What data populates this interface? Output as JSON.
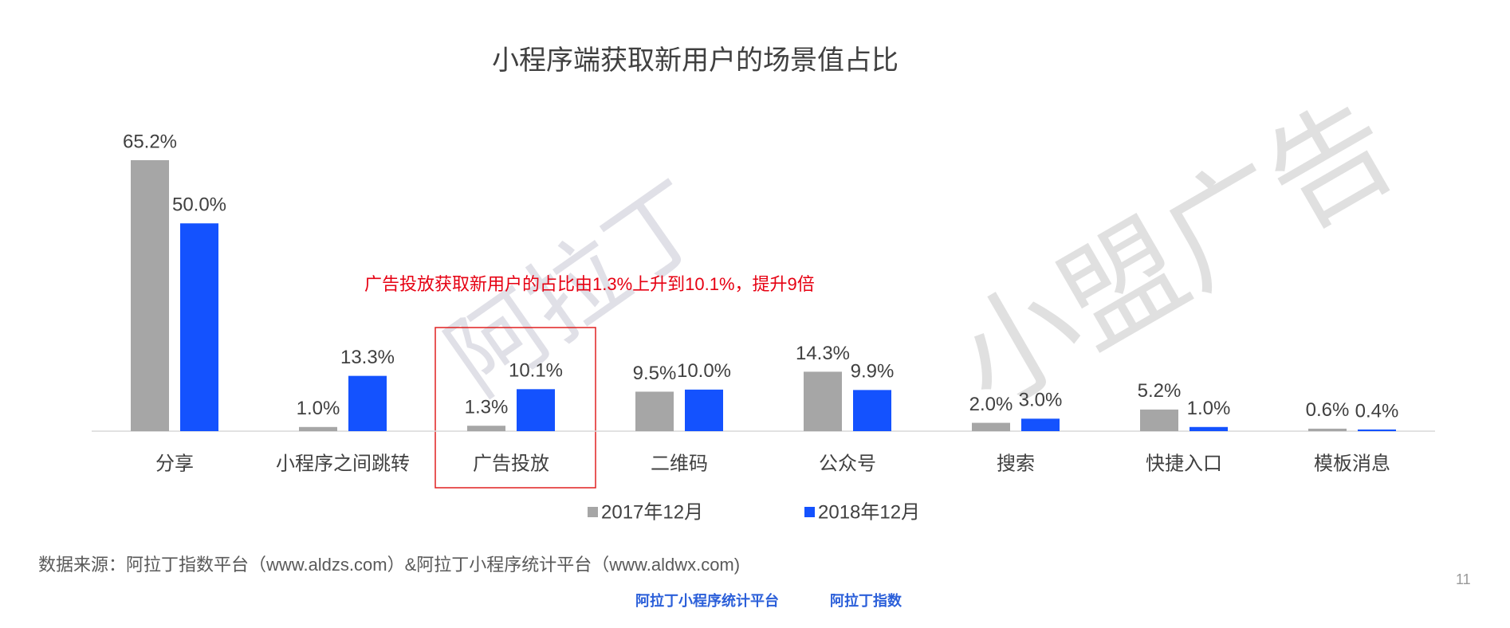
{
  "chart_data": {
    "type": "bar",
    "title": "小程序端获取新用户的场景值占比",
    "categories": [
      "分享",
      "小程序之间跳转",
      "广告投放",
      "二维码",
      "公众号",
      "搜索",
      "快捷入口",
      "模板消息"
    ],
    "series": [
      {
        "name": "2017年12月",
        "color": "#a6a6a6",
        "values": [
          65.2,
          1.0,
          1.3,
          9.5,
          14.3,
          2.0,
          5.2,
          0.6
        ],
        "value_labels": [
          "65.2%",
          "1.0%",
          "1.3%",
          "9.5%",
          "14.3%",
          "2.0%",
          "5.2%",
          "0.6%"
        ]
      },
      {
        "name": "2018年12月",
        "color": "#1452fe",
        "values": [
          50.0,
          13.3,
          10.1,
          10.0,
          9.9,
          3.0,
          1.0,
          0.4
        ],
        "value_labels": [
          "50.0%",
          "13.3%",
          "10.1%",
          "10.0%",
          "9.9%",
          "3.0%",
          "1.0%",
          "0.4%"
        ]
      }
    ],
    "annotation": "广告投放获取新用户的占比由1.3%上升到10.1%，提升9倍",
    "source": "数据来源：阿拉丁指数平台（www.aldzs.com）&阿拉丁小程序统计平台（www.aldwx.com)",
    "page_number": "11",
    "logos": [
      "阿拉丁小程序统计平台",
      "阿拉丁指数"
    ],
    "watermarks": [
      "阿拉丁",
      "小盟广告"
    ]
  }
}
